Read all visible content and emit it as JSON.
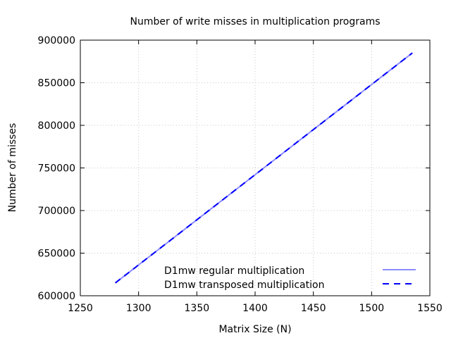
{
  "chart_data": {
    "type": "line",
    "title": "Number of write misses in multiplication programs",
    "xlabel": "Matrix Size (N)",
    "ylabel": "Number of misses",
    "xlim": [
      1250,
      1550
    ],
    "ylim": [
      600000,
      900000
    ],
    "xticks": [
      1250,
      1300,
      1350,
      1400,
      1450,
      1500,
      1550
    ],
    "yticks": [
      600000,
      650000,
      700000,
      750000,
      800000,
      850000,
      900000
    ],
    "grid": true,
    "legend_position": "bottom-right",
    "series": [
      {
        "name": "D1mw regular multiplication",
        "color": "#8c8cff",
        "style": "solid",
        "x": [
          1280,
          1535
        ],
        "y": [
          615000,
          885000
        ]
      },
      {
        "name": "D1mw transposed multiplication",
        "color": "#0000ff",
        "style": "dashed",
        "x": [
          1280,
          1535
        ],
        "y": [
          615000,
          885000
        ]
      }
    ]
  }
}
